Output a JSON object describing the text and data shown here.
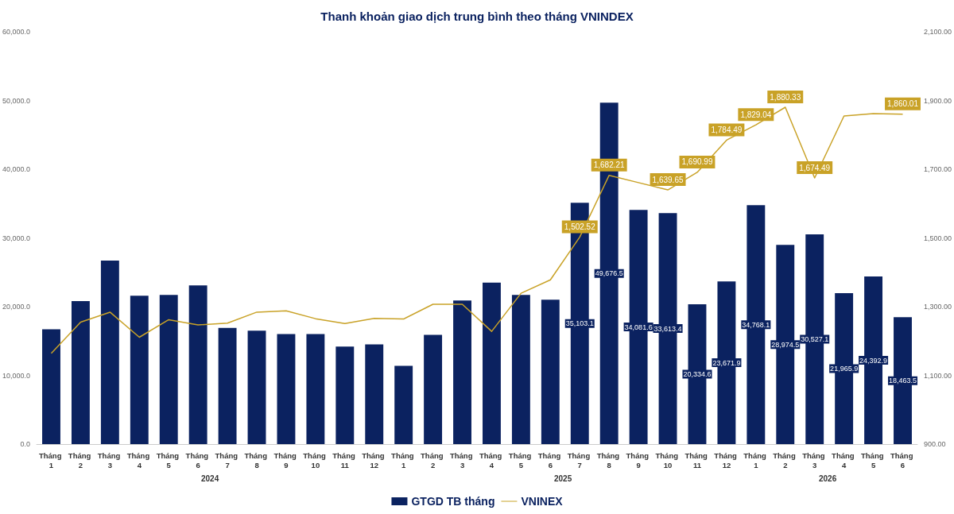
{
  "chart_data": {
    "type": "bar",
    "title": "Thanh khoản giao dịch trung bình theo tháng VNINDEX",
    "categories": [
      "Tháng 1",
      "Tháng 2",
      "Tháng 3",
      "Tháng 4",
      "Tháng 5",
      "Tháng 6",
      "Tháng 7",
      "Tháng 8",
      "Tháng 9",
      "Tháng 10",
      "Tháng 11",
      "Tháng 12",
      "Tháng 1",
      "Tháng 2",
      "Tháng 3",
      "Tháng 4",
      "Tháng 5",
      "Tháng 6",
      "Tháng 7",
      "Tháng 8",
      "Tháng 9",
      "Tháng 10",
      "Tháng 11",
      "Tháng 12",
      "Tháng 1",
      "Tháng 2",
      "Tháng 3",
      "Tháng 4",
      "Tháng 5",
      "Tháng 6"
    ],
    "series": [
      {
        "name": "GTGD TB tháng",
        "color": "#0b2260",
        "values": [
          16700,
          20800,
          26700,
          21600,
          21700,
          23100,
          16900,
          16500,
          16000,
          16000,
          14200,
          14500,
          11400,
          15900,
          20900,
          23500,
          21700,
          21000,
          35103.1,
          49676.5,
          34081.6,
          33613.4,
          20334.6,
          23671.9,
          34768.1,
          28974.5,
          30527.1,
          21965.9,
          24392.9,
          18463.5
        ],
        "value_labels": [
          null,
          null,
          null,
          null,
          null,
          null,
          null,
          null,
          null,
          null,
          null,
          null,
          null,
          null,
          null,
          null,
          null,
          null,
          "35,103.1",
          "49,676.5",
          "34,081.6",
          "33,613.4",
          "20,334.6",
          "23,671.9",
          "34,768.1",
          "28,974.5",
          "30,527.1",
          "21,965.9",
          "24,392.9",
          "18,463.5"
        ]
      },
      {
        "name": "VNINEX",
        "type": "line",
        "axis": "y2",
        "color": "#c9a227",
        "values": [
          1164,
          1255,
          1284,
          1211,
          1262,
          1247,
          1252,
          1284,
          1288,
          1265,
          1251,
          1266,
          1264,
          1307,
          1307,
          1228,
          1339,
          1378,
          1502.52,
          1682.21,
          1661,
          1639.65,
          1690.99,
          1784.49,
          1829.04,
          1880.33,
          1674.49,
          1855,
          1862,
          1860.01
        ],
        "value_labels": [
          null,
          null,
          null,
          null,
          null,
          null,
          null,
          null,
          null,
          null,
          null,
          null,
          null,
          null,
          null,
          null,
          null,
          null,
          "1,502.52",
          "1,682.21",
          null,
          "1,639.65",
          "1,690.99",
          "1,784.49",
          "1,829.04",
          "1,880.33",
          "1,674.49",
          null,
          null,
          "1,860.01"
        ]
      }
    ],
    "ylim": [
      0,
      60000
    ],
    "yticks": [
      {
        "value": 0,
        "label": "0.0"
      },
      {
        "value": 10000,
        "label": "10,000.0"
      },
      {
        "value": 20000,
        "label": "20,000.0"
      },
      {
        "value": 30000,
        "label": "30,000.0"
      },
      {
        "value": 40000,
        "label": "40,000.0"
      },
      {
        "value": 50000,
        "label": "50,000.0"
      },
      {
        "value": 60000,
        "label": "60,000.0"
      }
    ],
    "y2lim": [
      900,
      2100
    ],
    "y2ticks": [
      {
        "value": 900,
        "label": "900.00"
      },
      {
        "value": 1100,
        "label": "1,100.00"
      },
      {
        "value": 1300,
        "label": "1,300.00"
      },
      {
        "value": 1500,
        "label": "1,500.00"
      },
      {
        "value": 1700,
        "label": "1,700.00"
      },
      {
        "value": 1900,
        "label": "1,900.00"
      },
      {
        "value": 2100,
        "label": "2,100.00"
      }
    ],
    "annotations": [
      "2024",
      "2025",
      "2026"
    ],
    "grid": false,
    "legend": "bottom",
    "marker": "none"
  }
}
